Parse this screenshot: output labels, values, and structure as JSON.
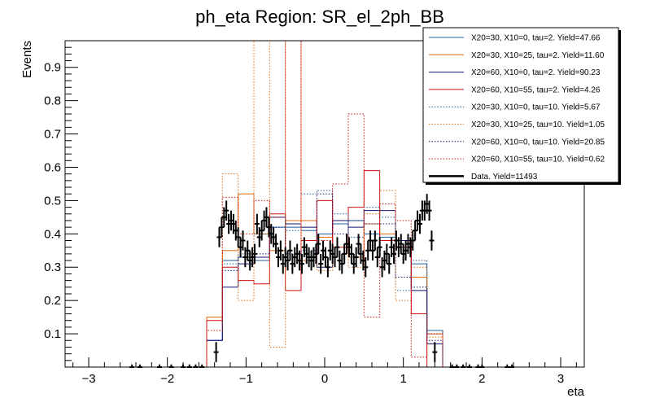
{
  "chart_data": {
    "type": "step-histogram",
    "title": "ph_eta Region: SR_el_2ph_BB",
    "xlabel": "eta",
    "ylabel": "Events",
    "xlim": [
      -3.3,
      3.3
    ],
    "ylim": [
      0,
      0.98
    ],
    "xticks": [
      -3,
      -2,
      -1,
      0,
      1,
      2,
      3
    ],
    "xtick_labels": [
      "−3",
      "−2",
      "−1",
      "0",
      "1",
      "2",
      "3"
    ],
    "yticks": [
      0.1,
      0.2,
      0.3,
      0.4,
      0.5,
      0.6,
      0.7,
      0.8,
      0.9
    ],
    "ytick_labels": [
      "0.1",
      "0.2",
      "0.3",
      "0.4",
      "0.5",
      "0.6",
      "0.7",
      "0.8",
      "0.9"
    ],
    "grid": false,
    "legend_position": "top-right",
    "bin_edges": [
      -1.5,
      -1.3,
      -1.1,
      -0.9,
      -0.7,
      -0.5,
      -0.3,
      -0.1,
      0.1,
      0.3,
      0.5,
      0.7,
      0.9,
      1.1,
      1.3,
      1.5
    ],
    "series": [
      {
        "name": "X20=30, X10=0, tau=2. Yield=47.66",
        "color": "#1f5fa0",
        "style": "solid",
        "values": [
          0.08,
          0.32,
          0.33,
          0.32,
          0.42,
          0.42,
          0.41,
          0.4,
          0.43,
          0.44,
          0.4,
          0.39,
          0.38,
          0.31,
          0.11
        ]
      },
      {
        "name": "X20=30, X10=25, tau=2. Yield=11.60",
        "color": "#e06c10",
        "style": "solid",
        "values": [
          0.15,
          0.35,
          0.52,
          0.4,
          0.35,
          0.44,
          0.44,
          0.39,
          0.44,
          0.33,
          0.43,
          0.4,
          0.38,
          0.27,
          0.1
        ]
      },
      {
        "name": "X20=60, X10=0, tau=2. Yield=90.23",
        "color": "#10106e",
        "style": "solid",
        "values": [
          0.08,
          0.24,
          0.31,
          0.33,
          0.45,
          0.43,
          0.42,
          0.3,
          0.44,
          0.42,
          0.47,
          0.47,
          0.38,
          0.23,
          0.07
        ]
      },
      {
        "name": "X20=60, X10=55, tau=2. Yield=4.26",
        "color": "#cc1010",
        "style": "solid",
        "values": [
          0.14,
          0.3,
          0.26,
          0.25,
          0.46,
          0.23,
          0.38,
          0.5,
          0.36,
          0.48,
          0.59,
          0.38,
          0.36,
          0.16,
          0.0
        ]
      },
      {
        "name": "X20=30, X10=0, tau=10. Yield=5.67",
        "color": "#1f5fa0",
        "style": "dotted",
        "values": [
          0.08,
          0.31,
          0.34,
          0.4,
          0.45,
          0.41,
          0.52,
          0.53,
          0.46,
          0.39,
          0.48,
          0.45,
          0.23,
          0.32,
          0.1
        ]
      },
      {
        "name": "X20=30, X10=25, tau=10. Yield=1.05",
        "color": "#e06c10",
        "style": "dotted",
        "values": [
          0.11,
          0.58,
          0.2,
          0.98,
          0.06,
          0.98,
          0.32,
          0.29,
          0.36,
          0.3,
          0.46,
          0.53,
          0.2,
          0.3,
          0.09
        ]
      },
      {
        "name": "X20=60, X10=0, tau=10. Yield=20.85",
        "color": "#10106e",
        "style": "dotted",
        "values": [
          0.08,
          0.29,
          0.33,
          0.34,
          0.42,
          0.34,
          0.35,
          0.52,
          0.4,
          0.44,
          0.43,
          0.43,
          0.27,
          0.24,
          0.08
        ]
      },
      {
        "name": "X20=60, X10=55, tau=10. Yield=0.62",
        "color": "#cc1010",
        "style": "dotted",
        "values": [
          0.11,
          0.51,
          0.4,
          0.5,
          0.45,
          0.98,
          0.32,
          0.38,
          0.55,
          0.76,
          0.15,
          0.49,
          0.44,
          0.03,
          0.1
        ]
      }
    ],
    "data_series": {
      "name": "Data. Yield=11493",
      "color": "#000000",
      "x": [
        -2.45,
        -2.35,
        -2.1,
        -1.95,
        -1.8,
        -1.72,
        -1.64,
        -1.56,
        -1.38,
        -1.34,
        -1.31,
        -1.28,
        -1.25,
        -1.22,
        -1.19,
        -1.16,
        -1.13,
        -1.1,
        -1.07,
        -1.04,
        -1.01,
        -0.98,
        -0.95,
        -0.92,
        -0.89,
        -0.86,
        -0.83,
        -0.8,
        -0.77,
        -0.74,
        -0.71,
        -0.68,
        -0.65,
        -0.62,
        -0.59,
        -0.56,
        -0.53,
        -0.5,
        -0.47,
        -0.44,
        -0.41,
        -0.38,
        -0.35,
        -0.32,
        -0.29,
        -0.26,
        -0.23,
        -0.2,
        -0.17,
        -0.14,
        -0.11,
        -0.08,
        -0.05,
        -0.02,
        0.01,
        0.04,
        0.07,
        0.1,
        0.13,
        0.16,
        0.19,
        0.22,
        0.25,
        0.28,
        0.31,
        0.34,
        0.37,
        0.4,
        0.43,
        0.46,
        0.49,
        0.52,
        0.55,
        0.58,
        0.61,
        0.64,
        0.67,
        0.7,
        0.73,
        0.76,
        0.79,
        0.82,
        0.85,
        0.88,
        0.91,
        0.94,
        0.97,
        1.0,
        1.03,
        1.06,
        1.09,
        1.12,
        1.15,
        1.18,
        1.21,
        1.24,
        1.27,
        1.3,
        1.33,
        1.36,
        1.4,
        1.62,
        1.68,
        1.76,
        1.84,
        1.95,
        2.0,
        2.32,
        2.38
      ],
      "y": [
        0.0,
        0.0,
        0.0,
        0.0,
        0.0,
        0.0,
        0.0,
        0.0,
        0.045,
        0.39,
        0.42,
        0.45,
        0.47,
        0.43,
        0.44,
        0.43,
        0.41,
        0.39,
        0.36,
        0.38,
        0.33,
        0.35,
        0.32,
        0.33,
        0.34,
        0.43,
        0.39,
        0.41,
        0.44,
        0.45,
        0.42,
        0.4,
        0.39,
        0.37,
        0.33,
        0.35,
        0.31,
        0.33,
        0.32,
        0.35,
        0.31,
        0.33,
        0.34,
        0.32,
        0.31,
        0.36,
        0.34,
        0.33,
        0.32,
        0.33,
        0.34,
        0.37,
        0.31,
        0.35,
        0.33,
        0.3,
        0.35,
        0.34,
        0.33,
        0.36,
        0.32,
        0.31,
        0.34,
        0.37,
        0.36,
        0.34,
        0.31,
        0.33,
        0.37,
        0.34,
        0.32,
        0.3,
        0.35,
        0.38,
        0.35,
        0.38,
        0.33,
        0.36,
        0.3,
        0.32,
        0.34,
        0.31,
        0.36,
        0.34,
        0.38,
        0.36,
        0.37,
        0.34,
        0.35,
        0.37,
        0.36,
        0.38,
        0.41,
        0.44,
        0.43,
        0.47,
        0.47,
        0.49,
        0.47,
        0.38,
        0.045,
        0.0,
        0.0,
        0.0,
        0.0,
        0.0,
        0.0,
        0.0,
        0.0
      ],
      "yerr": 0.03
    }
  }
}
